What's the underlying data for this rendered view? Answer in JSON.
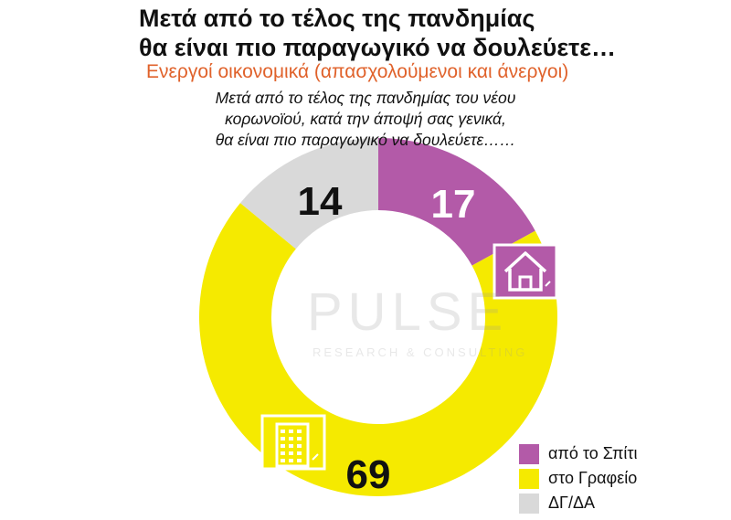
{
  "header": {
    "title_line1": "Μετά από το τέλος της πανδημίας",
    "title_line2": "θα είναι πιο παραγωγικό να δουλεύετε…",
    "subtitle": "Ενεργοί οικονομικά  (απασχολούμενοι και άνεργοι)",
    "question_line1": "Μετά από το τέλος της πανδημίας του νέου",
    "question_line2": "κορωνοϊού, κατά την άποψή σας γενικά,",
    "question_line3": "θα είναι πιο παραγωγικό να δουλεύετε……"
  },
  "watermark": {
    "word": "PULSE",
    "sub": "RESEARCH & CONSULTING"
  },
  "colors": {
    "home": "#b35aa8",
    "office": "#f5ea00",
    "dkna": "#d9d9d9",
    "subtitle": "#e0622b"
  },
  "chart_data": {
    "type": "pie",
    "donut": true,
    "title": "",
    "categories": [
      "από το Σπίτι",
      "στο Γραφείο",
      "ΔΓ/ΔΑ"
    ],
    "values": [
      17,
      69,
      14
    ],
    "data_labels": [
      "17",
      "69",
      "14"
    ],
    "icons": [
      "house-icon",
      "office-building-icon",
      ""
    ],
    "legend_position": "bottom-right"
  }
}
